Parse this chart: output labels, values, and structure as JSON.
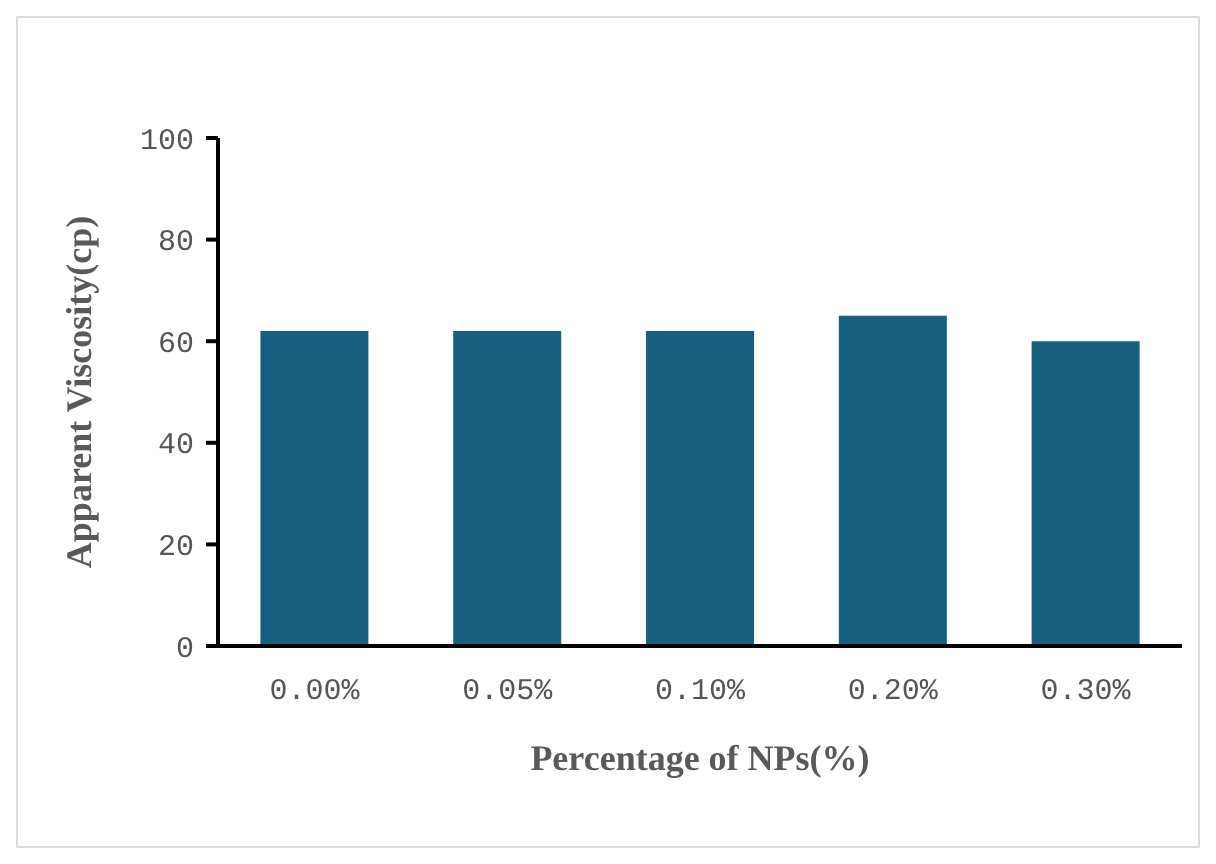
{
  "chart_data": {
    "type": "bar",
    "xlabel": "Percentage of NPs(%)",
    "ylabel": "Apparent Viscosity(cp)",
    "categories": [
      "0.00%",
      "0.05%",
      "0.10%",
      "0.20%",
      "0.30%"
    ],
    "values": [
      62,
      62,
      62,
      65,
      60
    ],
    "color": "#175f7e",
    "ylim": [
      0,
      100
    ],
    "yticks": [
      0,
      20,
      40,
      60,
      80,
      100
    ],
    "grid": false,
    "legend": false
  }
}
